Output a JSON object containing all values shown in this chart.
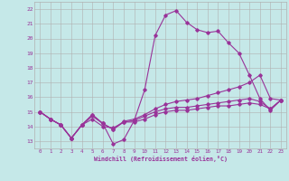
{
  "xlabel": "Windchill (Refroidissement éolien,°C)",
  "bg_color": "#c5e8e8",
  "grid_color": "#b0b0b0",
  "line_color": "#993399",
  "xlim": [
    -0.5,
    23.5
  ],
  "ylim": [
    12.5,
    22.5
  ],
  "xticks": [
    0,
    1,
    2,
    3,
    4,
    5,
    6,
    7,
    8,
    9,
    10,
    11,
    12,
    13,
    14,
    15,
    16,
    17,
    18,
    19,
    20,
    21,
    22,
    23
  ],
  "yticks": [
    13,
    14,
    15,
    16,
    17,
    18,
    19,
    20,
    21,
    22
  ],
  "series": [
    [
      15.0,
      14.5,
      14.1,
      13.2,
      14.1,
      14.8,
      14.2,
      12.8,
      13.1,
      14.4,
      16.5,
      20.2,
      21.6,
      21.9,
      21.1,
      20.6,
      20.4,
      20.5,
      19.7,
      19.0,
      17.5,
      15.9,
      15.1,
      15.8
    ],
    [
      15.0,
      14.5,
      14.1,
      13.2,
      14.1,
      14.8,
      14.2,
      13.8,
      14.35,
      14.5,
      14.8,
      15.2,
      15.5,
      15.7,
      15.8,
      15.9,
      16.1,
      16.3,
      16.5,
      16.7,
      17.0,
      17.5,
      15.9,
      15.8
    ],
    [
      15.0,
      14.5,
      14.1,
      13.2,
      14.1,
      14.7,
      14.2,
      13.8,
      14.3,
      14.4,
      14.7,
      15.0,
      15.2,
      15.3,
      15.3,
      15.4,
      15.5,
      15.6,
      15.7,
      15.8,
      15.9,
      15.7,
      15.2,
      15.8
    ],
    [
      15.0,
      14.5,
      14.1,
      13.2,
      14.1,
      14.5,
      14.0,
      13.9,
      14.3,
      14.3,
      14.5,
      14.8,
      15.0,
      15.1,
      15.1,
      15.2,
      15.3,
      15.4,
      15.4,
      15.5,
      15.6,
      15.5,
      15.2,
      15.8
    ]
  ]
}
